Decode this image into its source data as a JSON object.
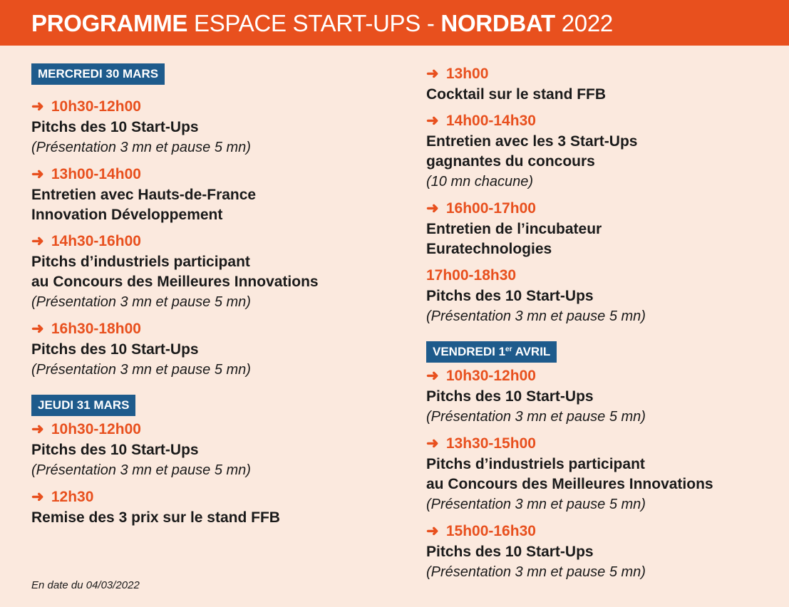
{
  "header": {
    "programme": "PROGRAMME",
    "espace": "ESPACE START-UPS - ",
    "nordbat": "NORDBAT",
    "year": " 2022"
  },
  "arrow": "➜",
  "days": {
    "mercredi": {
      "label": "MERCREDI 30 MARS",
      "slots": [
        {
          "time": "10h30-12h00",
          "title": "Pitchs des 10 Start-Ups",
          "note": "(Présentation 3 mn et pause 5 mn)"
        },
        {
          "time": "13h00-14h00",
          "title1": "Entretien avec Hauts-de-France",
          "title2": "Innovation Développement"
        },
        {
          "time": "14h30-16h00",
          "title1": "Pitchs d’industriels participant",
          "title2": "au Concours des Meilleures Innovations",
          "note": "(Présentation 3 mn et pause 5 mn)"
        },
        {
          "time": "16h30-18h00",
          "title": "Pitchs des 10 Start-Ups",
          "note": "(Présentation 3 mn et pause 5 mn)"
        }
      ]
    },
    "jeudi": {
      "label": "JEUDI 31 MARS",
      "slots": [
        {
          "time": "10h30-12h00",
          "title": "Pitchs des 10 Start-Ups",
          "note": "(Présentation 3 mn et pause 5 mn)"
        },
        {
          "time": "12h30",
          "title": "Remise des 3 prix sur le stand FFB"
        },
        {
          "time": "13h00",
          "title": "Cocktail sur le stand FFB"
        },
        {
          "time": "14h00-14h30",
          "title1": "Entretien avec les 3 Start-Ups",
          "title2": "gagnantes du concours",
          "note": "(10 mn chacune)"
        },
        {
          "time": "16h00-17h00",
          "title1": "Entretien de l’incubateur",
          "title2": "Euratechnologies"
        },
        {
          "time": "17h00-18h30",
          "title": "Pitchs des 10 Start-Ups",
          "note": "(Présentation 3 mn et pause 5 mn)"
        }
      ]
    },
    "vendredi": {
      "label": "VENDREDI 1",
      "label_sup": "er",
      "label_end": " AVRIL",
      "slots": [
        {
          "time": "10h30-12h00",
          "title": "Pitchs des 10 Start-Ups",
          "note": "(Présentation 3 mn et pause 5 mn)"
        },
        {
          "time": "13h30-15h00",
          "title1": "Pitchs d’industriels participant",
          "title2": "au Concours des Meilleures Innovations",
          "note": "(Présentation 3 mn et pause 5 mn)"
        },
        {
          "time": "15h00-16h30",
          "title": "Pitchs des 10 Start-Ups",
          "note": "(Présentation 3 mn et pause 5 mn)"
        }
      ]
    }
  },
  "footer": "En date du 04/03/2022",
  "colors": {
    "orange": "#e8501e",
    "blue": "#1e5b8c",
    "background": "#fbe9de"
  }
}
